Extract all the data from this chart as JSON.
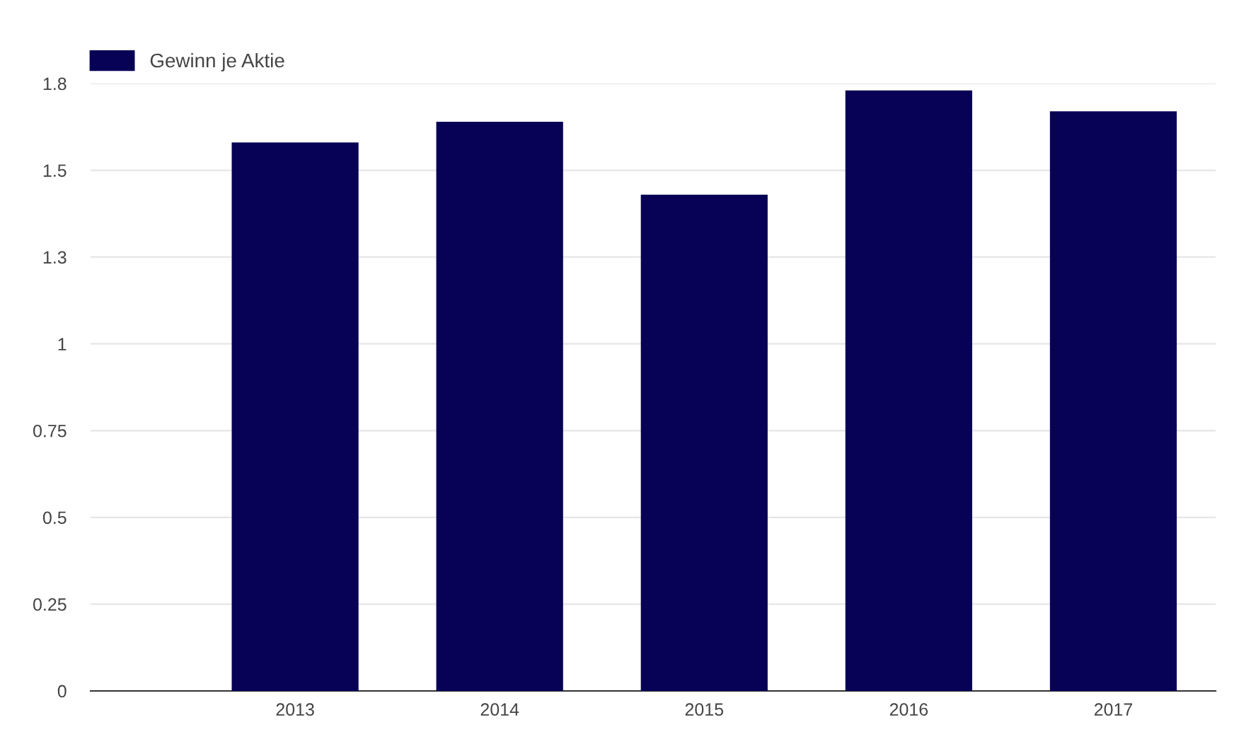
{
  "chart_data": {
    "type": "bar",
    "categories": [
      "2013",
      "2014",
      "2015",
      "2016",
      "2017"
    ],
    "series": [
      {
        "name": "Gewinn je Aktie",
        "color": "#070255",
        "values": [
          1.58,
          1.64,
          1.43,
          1.73,
          1.67
        ]
      }
    ],
    "ylim": [
      0,
      1.75
    ],
    "yticks": [
      0,
      0.25,
      0.5,
      0.75,
      1,
      {
        "value": 1.25,
        "label": "1.3"
      },
      1.5,
      {
        "value": 1.75,
        "label": "1.8"
      }
    ],
    "grid": "y",
    "legend": "top left"
  }
}
